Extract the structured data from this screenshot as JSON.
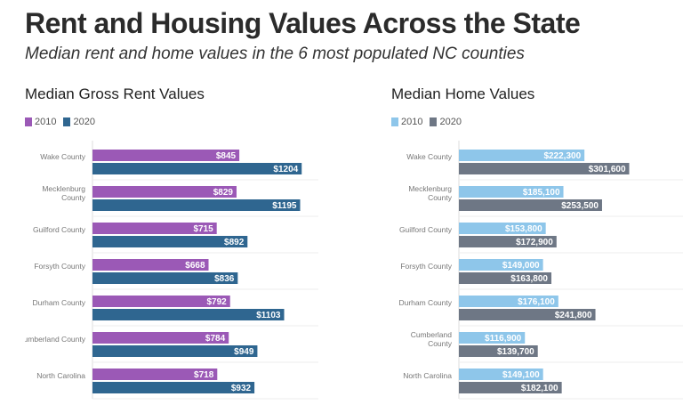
{
  "title": "Rent and Housing Values Across the State",
  "subtitle": "Median rent and home values in the 6 most populated NC counties",
  "chart_data": [
    {
      "type": "bar",
      "orientation": "horizontal",
      "title": "Median Gross Rent Values",
      "categories": [
        "Wake County",
        "Mecklenburg County",
        "Guilford County",
        "Forsyth County",
        "Durham County",
        "Cumberland County",
        "North Carolina"
      ],
      "category_lines": [
        [
          "Wake County"
        ],
        [
          "Mecklenburg",
          "County"
        ],
        [
          "Guilford County"
        ],
        [
          "Forsyth County"
        ],
        [
          "Durham County"
        ],
        [
          "Cumberland County"
        ],
        [
          "North Carolina"
        ]
      ],
      "series": [
        {
          "name": "2010",
          "color": "#9b59b6",
          "values": [
            845,
            829,
            715,
            668,
            792,
            784,
            718
          ],
          "labels": [
            "$845",
            "$829",
            "$715",
            "$668",
            "$792",
            "$784",
            "$718"
          ]
        },
        {
          "name": "2020",
          "color": "#2f6690",
          "values": [
            1204,
            1195,
            892,
            836,
            1103,
            949,
            932
          ],
          "labels": [
            "$1204",
            "$1195",
            "$892",
            "$836",
            "$1103",
            "$949",
            "$932"
          ]
        }
      ],
      "xlim": [
        0,
        1300
      ],
      "grid": true,
      "legend": "top-left"
    },
    {
      "type": "bar",
      "orientation": "horizontal",
      "title": "Median Home Values",
      "categories": [
        "Wake County",
        "Mecklenburg County",
        "Guilford County",
        "Forsyth County",
        "Durham County",
        "Cumberland County",
        "North Carolina"
      ],
      "category_lines": [
        [
          "Wake County"
        ],
        [
          "Mecklenburg",
          "County"
        ],
        [
          "Guilford County"
        ],
        [
          "Forsyth County"
        ],
        [
          "Durham County"
        ],
        [
          "Cumberland",
          "County"
        ],
        [
          "North Carolina"
        ]
      ],
      "series": [
        {
          "name": "2010",
          "color": "#8ec6ea",
          "values": [
            222300,
            185100,
            153800,
            149000,
            176100,
            116900,
            149100
          ],
          "labels": [
            "$222,300",
            "$185,100",
            "$153,800",
            "$149,000",
            "$176,100",
            "$116,900",
            "$149,100"
          ]
        },
        {
          "name": "2020",
          "color": "#6e7785",
          "values": [
            301600,
            253500,
            172900,
            163800,
            241800,
            139700,
            182100
          ],
          "labels": [
            "$301,600",
            "$253,500",
            "$172,900",
            "$163,800",
            "$241,800",
            "$139,700",
            "$182,100"
          ]
        }
      ],
      "xlim": [
        0,
        400000
      ],
      "grid": true,
      "legend": "top-left"
    }
  ]
}
